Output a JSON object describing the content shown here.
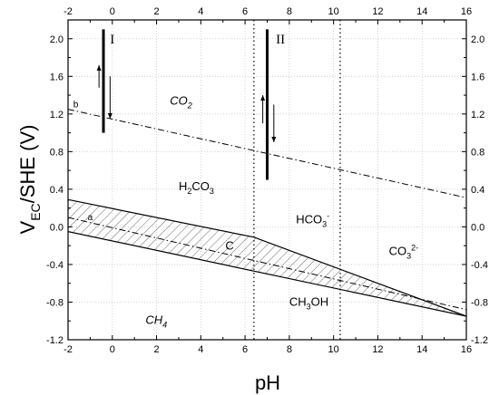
{
  "chart_data": {
    "type": "line",
    "xlabel": "pH",
    "ylabel_main": "V",
    "ylabel_sub": "EC",
    "ylabel_rest": "/SHE (V)",
    "xlim": [
      -2,
      16
    ],
    "ylim": [
      -1.2,
      2.2
    ],
    "x_ticks": [
      -2,
      0,
      2,
      4,
      6,
      8,
      10,
      12,
      14,
      16
    ],
    "y_ticks": [
      -1.2,
      -0.8,
      -0.4,
      0.0,
      0.4,
      0.8,
      1.2,
      1.6,
      2.0
    ],
    "x_tick_labels": [
      "-2",
      "0",
      "2",
      "4",
      "6",
      "8",
      "10",
      "12",
      "14",
      "16"
    ],
    "y_tick_labels": [
      "-1.2",
      "-0.8",
      "-0.4",
      "0.0",
      "0.4",
      "0.8",
      "1.2",
      "1.6",
      "2.0"
    ],
    "grid": "dotted",
    "boundaries": [
      6.4,
      10.3
    ],
    "upper_band": {
      "x": [
        -2,
        6.4,
        16
      ],
      "y": [
        0.29,
        -0.11,
        -0.95
      ]
    },
    "lower_band": {
      "x": [
        -2,
        16
      ],
      "y": [
        -0.05,
        -0.95
      ]
    },
    "line_b": {
      "x": [
        -2,
        16
      ],
      "y": [
        1.25,
        0.31
      ]
    },
    "line_a": {
      "x": [
        -2,
        16
      ],
      "y": [
        0.1,
        -0.88
      ]
    },
    "traces": [
      {
        "name": "I",
        "x": -0.4,
        "y": [
          1.0,
          2.1
        ]
      },
      {
        "name": "II",
        "x": 7.0,
        "y": [
          0.5,
          2.1
        ]
      }
    ],
    "arrows": [
      {
        "x": -0.6,
        "y_from": 1.48,
        "y_to": 1.72
      },
      {
        "x": -0.1,
        "y_from": 1.6,
        "y_to": 1.15
      },
      {
        "x": 6.8,
        "y_from": 1.1,
        "y_to": 1.4
      },
      {
        "x": 7.3,
        "y_from": 1.3,
        "y_to": 0.9
      }
    ],
    "labels": [
      {
        "text": "I",
        "x": 0.0,
        "y": 1.95,
        "style": "roman"
      },
      {
        "text": "II",
        "x": 7.6,
        "y": 1.95,
        "style": "roman"
      },
      {
        "text": "b",
        "x": -1.65,
        "y": 1.27,
        "style": "small"
      },
      {
        "text": "a",
        "x": -1.0,
        "y": 0.07,
        "style": "small"
      },
      {
        "text": "C",
        "x": 5.3,
        "y": -0.24,
        "style": "region"
      }
    ],
    "region_labels": [
      {
        "base": "CO",
        "sub": "2",
        "sup": "",
        "x": 2.6,
        "y": 1.3,
        "italic": true
      },
      {
        "base": "H",
        "sub": "2",
        "rest": "CO",
        "sub2": "3",
        "x": 3.0,
        "y": 0.39
      },
      {
        "base": "HCO",
        "sub": "3",
        "sup": "-",
        "x": 8.3,
        "y": 0.04
      },
      {
        "base": "CO",
        "sub": "3",
        "sup": "2-",
        "x": 12.5,
        "y": -0.3
      },
      {
        "base": "CH",
        "sub": "3",
        "rest": "OH",
        "x": 8.0,
        "y": -0.84
      },
      {
        "base": "CH",
        "sub": "4",
        "sup": "",
        "x": 1.5,
        "y": -1.03,
        "italic": true
      }
    ]
  }
}
